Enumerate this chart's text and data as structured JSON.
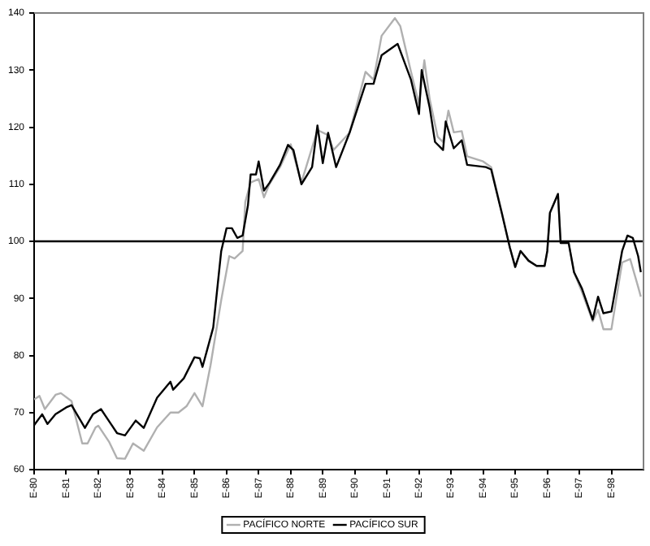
{
  "chart_data": {
    "type": "line",
    "xlim": [
      "1980-01",
      "1999-01"
    ],
    "ylim": [
      60,
      140
    ],
    "xticks": [
      {
        "value": "1980-01",
        "label": "E-80"
      },
      {
        "value": "1981-01",
        "label": "E-81"
      },
      {
        "value": "1982-01",
        "label": "E-82"
      },
      {
        "value": "1983-01",
        "label": "E-83"
      },
      {
        "value": "1984-01",
        "label": "E-84"
      },
      {
        "value": "1985-01",
        "label": "E-85"
      },
      {
        "value": "1986-01",
        "label": "E-86"
      },
      {
        "value": "1987-01",
        "label": "E-87"
      },
      {
        "value": "1988-01",
        "label": "E-88"
      },
      {
        "value": "1989-01",
        "label": "E-89"
      },
      {
        "value": "1990-01",
        "label": "E-90"
      },
      {
        "value": "1991-01",
        "label": "E-91"
      },
      {
        "value": "1992-01",
        "label": "E-92"
      },
      {
        "value": "1993-01",
        "label": "E-93"
      },
      {
        "value": "1994-01",
        "label": "E-94"
      },
      {
        "value": "1995-01",
        "label": "E-95"
      },
      {
        "value": "1996-01",
        "label": "E-96"
      },
      {
        "value": "1997-01",
        "label": "E-97"
      },
      {
        "value": "1998-01",
        "label": "E-98"
      }
    ],
    "yticks": [
      60,
      70,
      80,
      90,
      100,
      110,
      120,
      130,
      140
    ],
    "grid": false,
    "legend": "bottom",
    "marker": "none",
    "line_style": "solid",
    "ref_lines": [
      {
        "axis": "y",
        "value": 100,
        "color": "#000000"
      }
    ],
    "series": [
      {
        "name": "PACÍFICO NORTE",
        "color": "#b0b0b0",
        "x": [
          "1980-01",
          "1980-03",
          "1980-05",
          "1980-09",
          "1980-11",
          "1981-03",
          "1981-07",
          "1981-09",
          "1981-12",
          "1982-01",
          "1982-05",
          "1982-08",
          "1982-11",
          "1983-02",
          "1983-06",
          "1983-11",
          "1984-04",
          "1984-07",
          "1984-10",
          "1985-01",
          "1985-04",
          "1985-07",
          "1985-11",
          "1986-02",
          "1986-04",
          "1986-07",
          "1986-08",
          "1986-10",
          "1987-01",
          "1987-03",
          "1987-05",
          "1987-09",
          "1988-01",
          "1988-05",
          "1988-11",
          "1989-03",
          "1989-05",
          "1989-11",
          "1990-05",
          "1990-08",
          "1990-11",
          "1991-04",
          "1991-06",
          "1991-10",
          "1992-01",
          "1992-03",
          "1992-05",
          "1992-08",
          "1992-10",
          "1992-12",
          "1993-02",
          "1993-05",
          "1993-07",
          "1994-01",
          "1994-04",
          "1994-08",
          "1994-11",
          "1995-01",
          "1995-03",
          "1995-06",
          "1995-09",
          "1995-12",
          "1996-01",
          "1996-02",
          "1996-05",
          "1996-06",
          "1996-09",
          "1996-11",
          "1997-02",
          "1997-06",
          "1997-08",
          "1997-10",
          "1998-01",
          "1998-05",
          "1998-08",
          "1998-11",
          "1998-12"
        ],
        "values": [
          72.3,
          72.9,
          70.6,
          73.1,
          73.4,
          72,
          64.6,
          64.6,
          67.4,
          67.7,
          64.9,
          62,
          61.9,
          64.6,
          63.3,
          67.4,
          70,
          70,
          71.1,
          73.4,
          71.1,
          78.3,
          89.7,
          97.4,
          97,
          98.3,
          106.9,
          110.3,
          110.9,
          107.7,
          110,
          113,
          117,
          110.3,
          119.5,
          118.6,
          116,
          119,
          129.7,
          128.3,
          136,
          139.1,
          137.7,
          129.7,
          124,
          131.7,
          124.9,
          118.3,
          117.4,
          122.9,
          119.1,
          119.3,
          114.9,
          114,
          113,
          105,
          98.9,
          95.5,
          98.3,
          96.6,
          95.7,
          95.7,
          98.3,
          105,
          108.3,
          99.7,
          99.7,
          94.6,
          91.1,
          86,
          88,
          84.6,
          84.6,
          96.3,
          96.9,
          92,
          90.3
        ]
      },
      {
        "name": "PACÍFICO SUR",
        "color": "#000000",
        "x": [
          "1980-01",
          "1980-04",
          "1980-06",
          "1980-09",
          "1981-01",
          "1981-03",
          "1981-08",
          "1981-11",
          "1982-02",
          "1982-06",
          "1982-08",
          "1982-11",
          "1983-03",
          "1983-06",
          "1983-11",
          "1984-04",
          "1984-05",
          "1984-09",
          "1985-01",
          "1985-03",
          "1985-04",
          "1985-08",
          "1985-11",
          "1986-01",
          "1986-03",
          "1986-05",
          "1986-07",
          "1986-09",
          "1986-10",
          "1986-12",
          "1987-01",
          "1987-03",
          "1987-05",
          "1987-09",
          "1987-12",
          "1988-02",
          "1988-05",
          "1988-09",
          "1988-11",
          "1989-01",
          "1989-03",
          "1989-06",
          "1989-11",
          "1990-05",
          "1990-08",
          "1990-11",
          "1991-05",
          "1991-10",
          "1992-01",
          "1992-02",
          "1992-05",
          "1992-07",
          "1992-10",
          "1992-11",
          "1993-02",
          "1993-05",
          "1993-07",
          "1994-02",
          "1994-04",
          "1994-08",
          "1994-11",
          "1995-01",
          "1995-03",
          "1995-06",
          "1995-09",
          "1995-12",
          "1996-01",
          "1996-02",
          "1996-05",
          "1996-06",
          "1996-09",
          "1996-11",
          "1997-02",
          "1997-06",
          "1997-08",
          "1997-10",
          "1998-01",
          "1998-05",
          "1998-07",
          "1998-09",
          "1998-11",
          "1998-12"
        ],
        "values": [
          67.8,
          69.7,
          68,
          69.7,
          70.9,
          71.3,
          67.3,
          69.7,
          70.6,
          67.8,
          66.4,
          66,
          68.6,
          67.3,
          72.6,
          75.4,
          74,
          76,
          79.7,
          79.5,
          78,
          84.9,
          98.3,
          102.3,
          102.3,
          100.6,
          101,
          106.3,
          111.7,
          111.7,
          114,
          108.9,
          110.2,
          113.4,
          116.9,
          116,
          110,
          113,
          120.3,
          113.7,
          119,
          113,
          119,
          127.6,
          127.6,
          132.6,
          134.6,
          128.3,
          122.3,
          130,
          123.4,
          117.4,
          116,
          121,
          116.3,
          117.7,
          113.4,
          113,
          112.6,
          104.9,
          98.9,
          95.5,
          98.3,
          96.6,
          95.7,
          95.7,
          98.3,
          105,
          108.3,
          99.7,
          99.7,
          94.6,
          91.7,
          86.3,
          90.3,
          87.4,
          87.7,
          98.3,
          101,
          100.6,
          97.4,
          94.6
        ]
      }
    ]
  }
}
